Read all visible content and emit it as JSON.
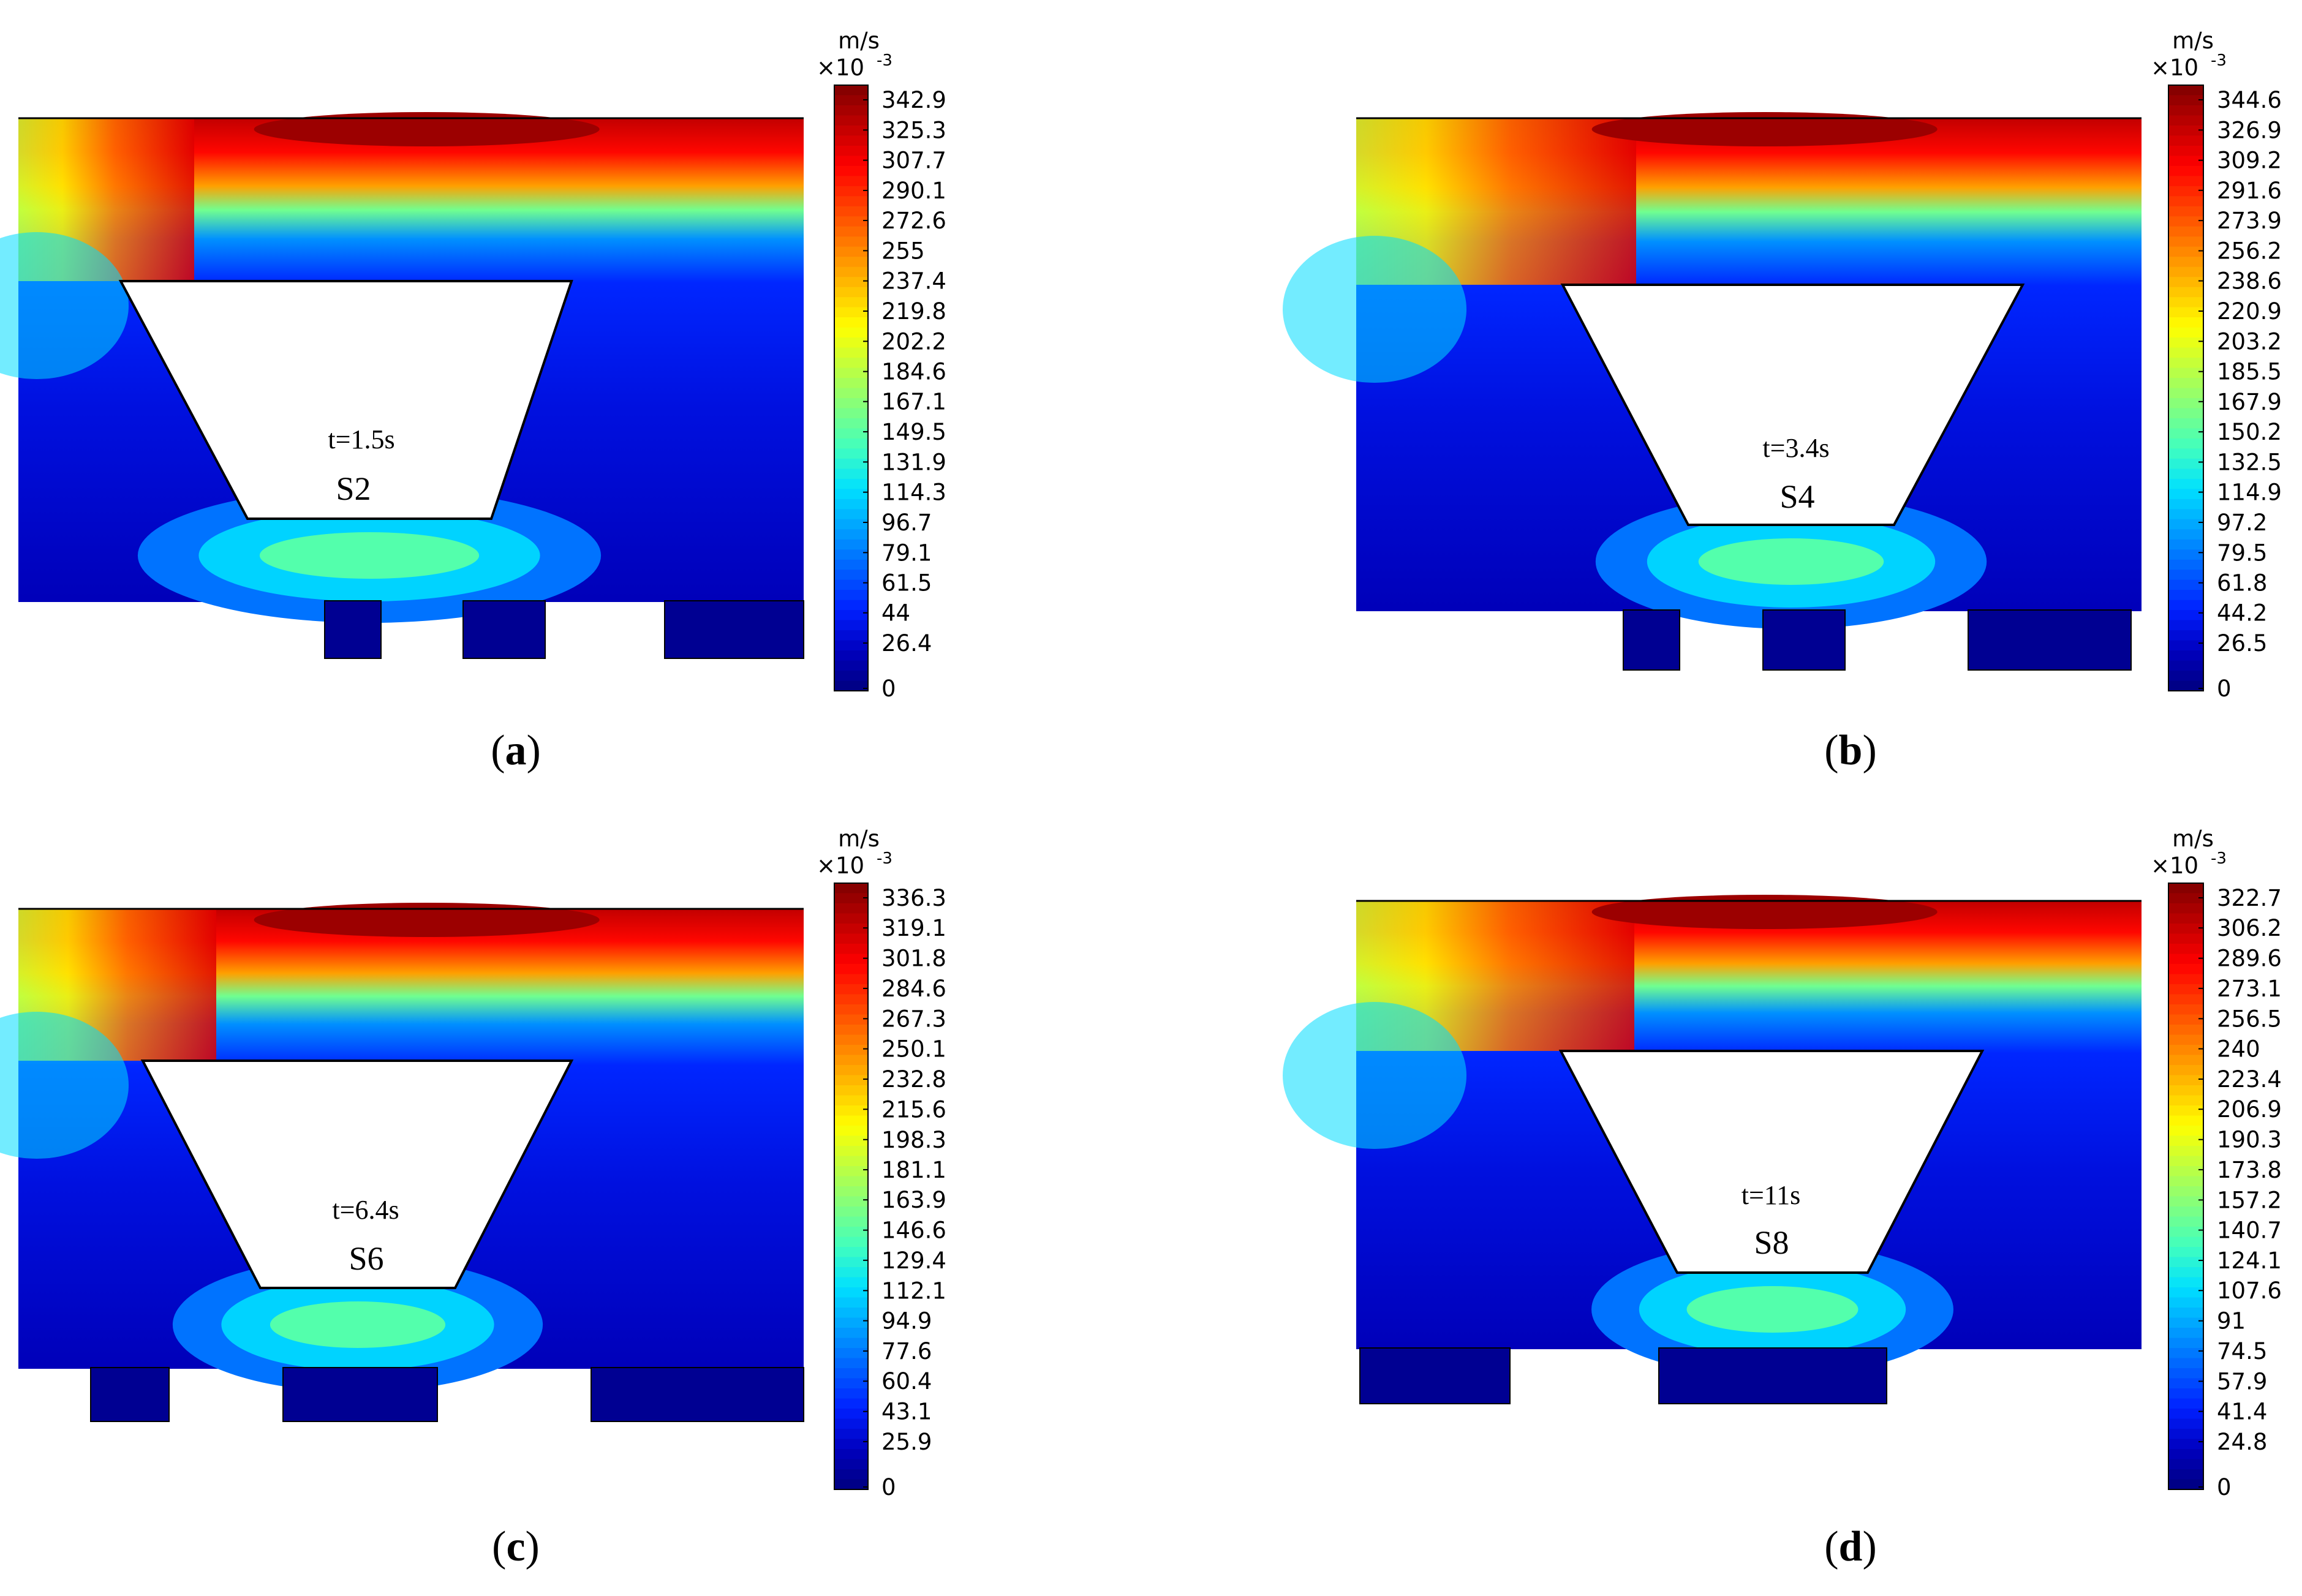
{
  "chart_data": [
    {
      "type": "heatmap",
      "panel_label": "a",
      "time_label": "t=1.5s",
      "stage_label": "S2",
      "unit": "m/s",
      "unit_scale": "×10",
      "unit_exponent": "-3",
      "colorbar_range": [
        0,
        342.9
      ],
      "colorbar_ticks": [
        "342.9",
        "325.3",
        "307.7",
        "290.1",
        "272.6",
        "255",
        "237.4",
        "219.8",
        "202.2",
        "184.6",
        "167.1",
        "149.5",
        "131.9",
        "114.3",
        "96.7",
        "79.1",
        "61.5",
        "44",
        "26.4",
        "0"
      ]
    },
    {
      "type": "heatmap",
      "panel_label": "b",
      "time_label": "t=3.4s",
      "stage_label": "S4",
      "unit": "m/s",
      "unit_scale": "×10",
      "unit_exponent": "-3",
      "colorbar_range": [
        0,
        344.6
      ],
      "colorbar_ticks": [
        "344.6",
        "326.9",
        "309.2",
        "291.6",
        "273.9",
        "256.2",
        "238.6",
        "220.9",
        "203.2",
        "185.5",
        "167.9",
        "150.2",
        "132.5",
        "114.9",
        "97.2",
        "79.5",
        "61.8",
        "44.2",
        "26.5",
        "0"
      ]
    },
    {
      "type": "heatmap",
      "panel_label": "c",
      "time_label": "t=6.4s",
      "stage_label": "S6",
      "unit": "m/s",
      "unit_scale": "×10",
      "unit_exponent": "-3",
      "colorbar_range": [
        0,
        336.3
      ],
      "colorbar_ticks": [
        "336.3",
        "319.1",
        "301.8",
        "284.6",
        "267.3",
        "250.1",
        "232.8",
        "215.6",
        "198.3",
        "181.1",
        "163.9",
        "146.6",
        "129.4",
        "112.1",
        "94.9",
        "77.6",
        "60.4",
        "43.1",
        "25.9",
        "0"
      ]
    },
    {
      "type": "heatmap",
      "panel_label": "d",
      "time_label": "t=11s",
      "stage_label": "S8",
      "unit": "m/s",
      "unit_scale": "×10",
      "unit_exponent": "-3",
      "colorbar_range": [
        0,
        322.7
      ],
      "colorbar_ticks": [
        "322.7",
        "306.2",
        "289.6",
        "273.1",
        "256.5",
        "240",
        "223.4",
        "206.9",
        "190.3",
        "173.8",
        "157.2",
        "140.7",
        "124.1",
        "107.6",
        "91",
        "74.5",
        "57.9",
        "41.4",
        "24.8",
        "0"
      ]
    }
  ],
  "colormap": [
    "#00007f",
    "#0000bf",
    "#0020ff",
    "#0060ff",
    "#00a0ff",
    "#00e0ff",
    "#40ffbf",
    "#80ff80",
    "#bfff40",
    "#ffff00",
    "#ffbf00",
    "#ff8000",
    "#ff4000",
    "#ff0000",
    "#bf0000",
    "#7f0000"
  ]
}
